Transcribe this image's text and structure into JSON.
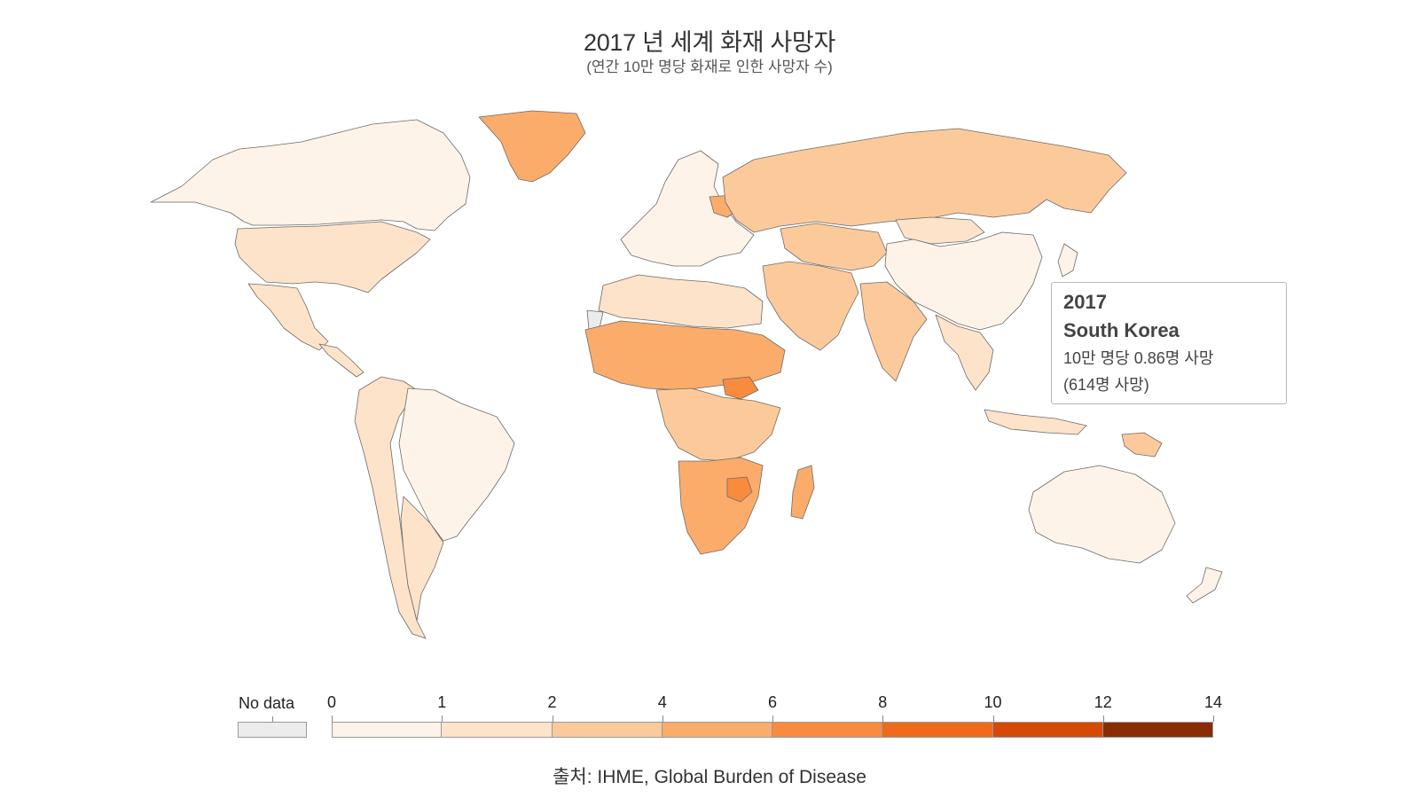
{
  "title": "2017 년 세계 화재 사망자",
  "subtitle": "(연간 10만 명당 화재로 인한 사망자 수)",
  "tooltip": {
    "year": "2017",
    "country": "South Korea",
    "rate_line": "10만 명당 0.86명 사망",
    "count_line": "(614명 사망)"
  },
  "legend": {
    "no_data_label": "No data",
    "no_data_color": "#ececec",
    "ticks": [
      "0",
      "1",
      "2",
      "4",
      "6",
      "8",
      "10",
      "12",
      "14"
    ],
    "colors": [
      "#fef3e8",
      "#fde3c9",
      "#fcca9a",
      "#fbac6a",
      "#f98b3f",
      "#ef6a1b",
      "#d64a06",
      "#8b2d04"
    ]
  },
  "source": "출처: IHME, Global Burden of Disease",
  "map": {
    "ocean_color": "#ffffff",
    "border_color": "#6b6b6b",
    "regions": [
      {
        "name": "Canada",
        "color": "#fef3e8"
      },
      {
        "name": "United States",
        "color": "#fde3c9"
      },
      {
        "name": "Mexico",
        "color": "#fde3c9"
      },
      {
        "name": "Greenland",
        "color": "#fbac6a"
      },
      {
        "name": "Brazil",
        "color": "#fef3e8"
      },
      {
        "name": "Western South America",
        "color": "#fde3c9"
      },
      {
        "name": "Argentina",
        "color": "#fde3c9"
      },
      {
        "name": "Russia",
        "color": "#fcca9a"
      },
      {
        "name": "Europe",
        "color": "#fef3e8"
      },
      {
        "name": "Belarus",
        "color": "#fbac6a"
      },
      {
        "name": "China",
        "color": "#fef3e8"
      },
      {
        "name": "Mongolia",
        "color": "#fde3c9"
      },
      {
        "name": "Central Asia",
        "color": "#fcca9a"
      },
      {
        "name": "India",
        "color": "#fcca9a"
      },
      {
        "name": "Middle East",
        "color": "#fcca9a"
      },
      {
        "name": "Southeast Asia",
        "color": "#fde3c9"
      },
      {
        "name": "North Africa",
        "color": "#fde3c9"
      },
      {
        "name": "Sahel",
        "color": "#fbac6a"
      },
      {
        "name": "Central Africa",
        "color": "#fcca9a"
      },
      {
        "name": "South Sudan",
        "color": "#f98b3f"
      },
      {
        "name": "Southern Africa",
        "color": "#fbac6a"
      },
      {
        "name": "Zimbabwe",
        "color": "#f98b3f"
      },
      {
        "name": "Madagascar",
        "color": "#fbac6a"
      },
      {
        "name": "Australia",
        "color": "#fef3e8"
      },
      {
        "name": "New Zealand",
        "color": "#fef3e8"
      },
      {
        "name": "Papua New Guinea",
        "color": "#fcca9a"
      },
      {
        "name": "Indonesia",
        "color": "#fde3c9"
      },
      {
        "name": "Japan",
        "color": "#fef3e8"
      },
      {
        "name": "Western Sahara",
        "color": "#ececec"
      }
    ]
  }
}
